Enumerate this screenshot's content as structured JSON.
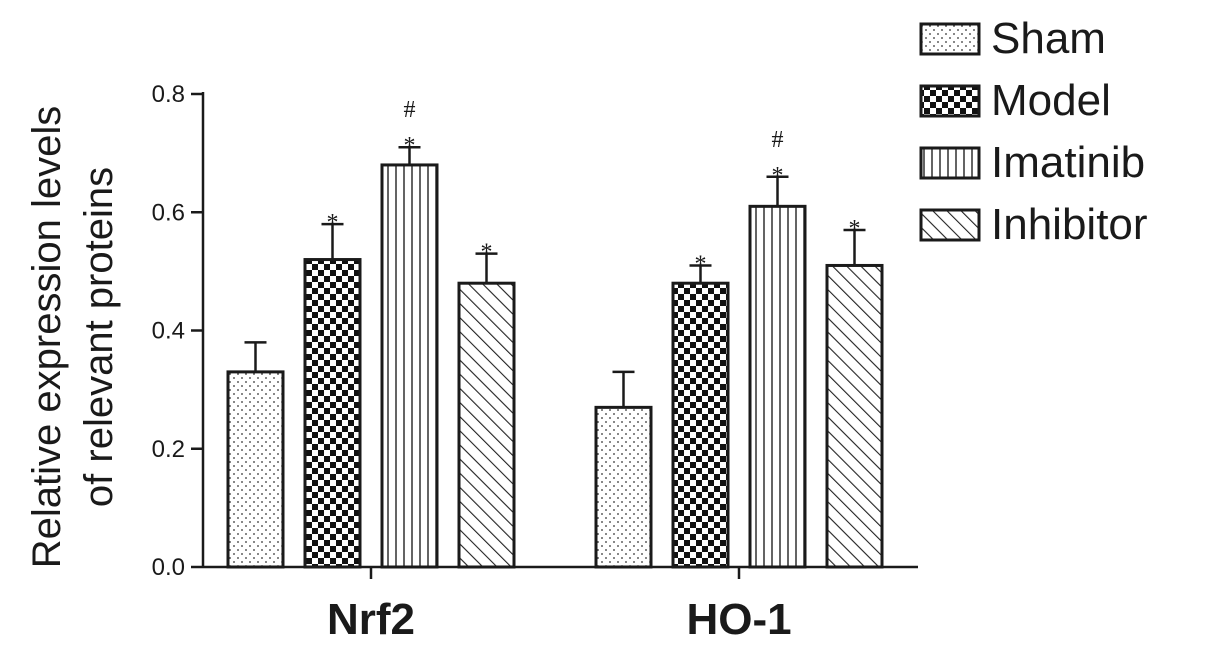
{
  "chart_data": {
    "type": "bar",
    "ylabel_lines": [
      "Relative expression levels",
      "of relevant proteins"
    ],
    "xlabel": "",
    "title": "",
    "ylim": [
      0,
      0.8
    ],
    "yticks": [
      0.0,
      0.2,
      0.4,
      0.6,
      0.8
    ],
    "ytick_labels": [
      "0.0",
      "0.2",
      "0.4",
      "0.6",
      "0.8"
    ],
    "categories": [
      "Nrf2",
      "HO-1"
    ],
    "legend_position": "top-right",
    "grid": false,
    "series": [
      {
        "name": "Sham",
        "pattern": "dots",
        "values": [
          0.33,
          0.27
        ],
        "errors": [
          0.05,
          0.06
        ],
        "marks": [
          "",
          ""
        ]
      },
      {
        "name": "Model",
        "pattern": "checker",
        "values": [
          0.52,
          0.48
        ],
        "errors": [
          0.06,
          0.03
        ],
        "marks": [
          "*",
          "*"
        ]
      },
      {
        "name": "Imatinib",
        "pattern": "vertical-lines",
        "values": [
          0.68,
          0.61
        ],
        "errors": [
          0.03,
          0.05
        ],
        "marks": [
          "#\n*",
          "#\n*"
        ]
      },
      {
        "name": "Inhibitor",
        "pattern": "diagonal-lines",
        "values": [
          0.48,
          0.51
        ],
        "errors": [
          0.05,
          0.06
        ],
        "marks": [
          "*",
          "*"
        ]
      }
    ],
    "colors": {
      "stroke": "#1a1a1a",
      "fill": "#ffffff"
    }
  }
}
